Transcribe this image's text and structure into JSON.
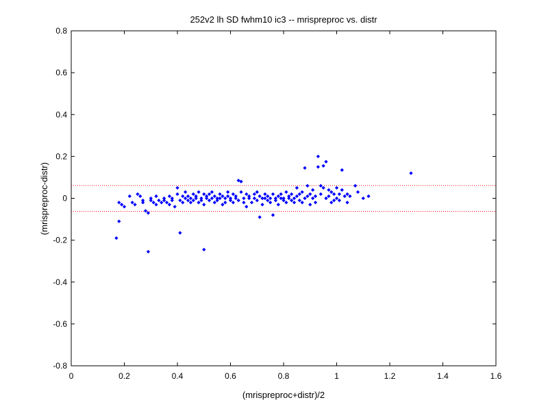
{
  "chart_data": {
    "type": "scatter",
    "title": "252v2 lh SD fwhm10 ic3 -- mrispreproc vs. distr",
    "xlabel": "(mrispreproc+distr)/2",
    "ylabel": "(mrispreproc-distr)",
    "xlim": [
      0,
      1.6
    ],
    "ylim": [
      -0.8,
      0.8
    ],
    "x_ticks": [
      "0",
      "0.2",
      "0.4",
      "0.6",
      "0.8",
      "1",
      "1.2",
      "1.4",
      "1.6"
    ],
    "y_ticks": [
      "-0.8",
      "-0.6",
      "-0.4",
      "-0.2",
      "0",
      "0.2",
      "0.4",
      "0.6",
      "0.8"
    ],
    "grid": false,
    "reference_lines": {
      "values": [
        0.061,
        -0.062
      ],
      "color": "#ff0000",
      "style": "dotted"
    },
    "marker_color": "#0000ff",
    "series": [
      {
        "points": [
          [
            0.17,
            -0.19
          ],
          [
            0.18,
            -0.11
          ],
          [
            0.18,
            -0.02
          ],
          [
            0.19,
            -0.03
          ],
          [
            0.2,
            -0.04
          ],
          [
            0.22,
            0.01
          ],
          [
            0.23,
            -0.02
          ],
          [
            0.24,
            -0.03
          ],
          [
            0.25,
            0.02
          ],
          [
            0.26,
            0.01
          ],
          [
            0.27,
            -0.02
          ],
          [
            0.27,
            -0.01
          ],
          [
            0.28,
            -0.06
          ],
          [
            0.29,
            -0.255
          ],
          [
            0.29,
            -0.07
          ],
          [
            0.3,
            -0.01
          ],
          [
            0.3,
            0.0
          ],
          [
            0.31,
            -0.02
          ],
          [
            0.32,
            -0.03
          ],
          [
            0.32,
            0.01
          ],
          [
            0.33,
            -0.01
          ],
          [
            0.34,
            -0.02
          ],
          [
            0.35,
            0.0
          ],
          [
            0.35,
            -0.01
          ],
          [
            0.36,
            -0.02
          ],
          [
            0.37,
            0.01
          ],
          [
            0.37,
            -0.03
          ],
          [
            0.38,
            -0.01
          ],
          [
            0.38,
            0.0
          ],
          [
            0.39,
            -0.04
          ],
          [
            0.4,
            0.05
          ],
          [
            0.4,
            0.02
          ],
          [
            0.41,
            -0.165
          ],
          [
            0.41,
            -0.01
          ],
          [
            0.42,
            0.01
          ],
          [
            0.42,
            -0.02
          ],
          [
            0.43,
            0.0
          ],
          [
            0.43,
            0.03
          ],
          [
            0.44,
            -0.01
          ],
          [
            0.44,
            0.01
          ],
          [
            0.45,
            0.0
          ],
          [
            0.45,
            -0.02
          ],
          [
            0.46,
            0.02
          ],
          [
            0.46,
            -0.01
          ],
          [
            0.47,
            0.0
          ],
          [
            0.47,
            0.01
          ],
          [
            0.48,
            -0.02
          ],
          [
            0.48,
            0.03
          ],
          [
            0.49,
            0.0
          ],
          [
            0.49,
            -0.01
          ],
          [
            0.5,
            -0.245
          ],
          [
            0.5,
            0.02
          ],
          [
            0.5,
            -0.03
          ],
          [
            0.51,
            0.01
          ],
          [
            0.51,
            0.0
          ],
          [
            0.52,
            -0.01
          ],
          [
            0.52,
            0.02
          ],
          [
            0.53,
            0.0
          ],
          [
            0.53,
            0.03
          ],
          [
            0.54,
            -0.02
          ],
          [
            0.54,
            0.01
          ],
          [
            0.55,
            0.0
          ],
          [
            0.55,
            -0.01
          ],
          [
            0.56,
            0.02
          ],
          [
            0.56,
            0.0
          ],
          [
            0.57,
            -0.03
          ],
          [
            0.57,
            0.01
          ],
          [
            0.58,
            0.0
          ],
          [
            0.58,
            -0.02
          ],
          [
            0.59,
            0.01
          ],
          [
            0.59,
            0.03
          ],
          [
            0.6,
            -0.01
          ],
          [
            0.6,
            0.0
          ],
          [
            0.61,
            0.02
          ],
          [
            0.61,
            -0.02
          ],
          [
            0.62,
            0.01
          ],
          [
            0.62,
            0.0
          ],
          [
            0.63,
            0.085
          ],
          [
            0.63,
            -0.01
          ],
          [
            0.64,
            0.08
          ],
          [
            0.64,
            0.03
          ],
          [
            0.65,
            -0.02
          ],
          [
            0.65,
            0.0
          ],
          [
            0.66,
            0.02
          ],
          [
            0.66,
            -0.04
          ],
          [
            0.67,
            0.01
          ],
          [
            0.67,
            0.0
          ],
          [
            0.68,
            -0.02
          ],
          [
            0.69,
            0.02
          ],
          [
            0.69,
            0.0
          ],
          [
            0.7,
            -0.01
          ],
          [
            0.7,
            0.03
          ],
          [
            0.71,
            -0.09
          ],
          [
            0.71,
            0.01
          ],
          [
            0.72,
            0.0
          ],
          [
            0.72,
            -0.03
          ],
          [
            0.73,
            0.02
          ],
          [
            0.73,
            0.0
          ],
          [
            0.74,
            -0.01
          ],
          [
            0.74,
            0.01
          ],
          [
            0.75,
            -0.02
          ],
          [
            0.75,
            0.0
          ],
          [
            0.76,
            -0.08
          ],
          [
            0.76,
            0.02
          ],
          [
            0.77,
            0.0
          ],
          [
            0.77,
            -0.01
          ],
          [
            0.78,
            0.01
          ],
          [
            0.78,
            -0.03
          ],
          [
            0.79,
            0.0
          ],
          [
            0.79,
            0.02
          ],
          [
            0.8,
            -0.01
          ],
          [
            0.8,
            0.0
          ],
          [
            0.81,
            0.03
          ],
          [
            0.81,
            -0.02
          ],
          [
            0.82,
            0.01
          ],
          [
            0.82,
            0.0
          ],
          [
            0.83,
            -0.01
          ],
          [
            0.83,
            0.02
          ],
          [
            0.84,
            0.0
          ],
          [
            0.84,
            -0.02
          ],
          [
            0.85,
            0.05
          ],
          [
            0.85,
            0.01
          ],
          [
            0.86,
            -0.01
          ],
          [
            0.86,
            0.02
          ],
          [
            0.87,
            0.03
          ],
          [
            0.87,
            -0.02
          ],
          [
            0.88,
            0.145
          ],
          [
            0.88,
            0.0
          ],
          [
            0.89,
            0.06
          ],
          [
            0.89,
            0.01
          ],
          [
            0.9,
            0.02
          ],
          [
            0.9,
            -0.03
          ],
          [
            0.91,
            0.04
          ],
          [
            0.91,
            0.0
          ],
          [
            0.92,
            0.01
          ],
          [
            0.92,
            -0.02
          ],
          [
            0.93,
            0.2
          ],
          [
            0.93,
            0.15
          ],
          [
            0.94,
            0.06
          ],
          [
            0.94,
            0.02
          ],
          [
            0.95,
            0.155
          ],
          [
            0.95,
            0.05
          ],
          [
            0.96,
            0.175
          ],
          [
            0.96,
            0.0
          ],
          [
            0.97,
            0.04
          ],
          [
            0.97,
            0.01
          ],
          [
            0.98,
            -0.02
          ],
          [
            0.98,
            0.03
          ],
          [
            0.99,
            0.02
          ],
          [
            0.99,
            -0.01
          ],
          [
            1.0,
            0.05
          ],
          [
            1.0,
            0.0
          ],
          [
            1.01,
            0.02
          ],
          [
            1.01,
            -0.01
          ],
          [
            1.02,
            0.135
          ],
          [
            1.02,
            0.04
          ],
          [
            1.03,
            0.01
          ],
          [
            1.04,
            0.02
          ],
          [
            1.04,
            -0.02
          ],
          [
            1.05,
            0.01
          ],
          [
            1.07,
            0.06
          ],
          [
            1.08,
            0.03
          ],
          [
            1.1,
            0.0
          ],
          [
            1.12,
            0.01
          ],
          [
            1.28,
            0.12
          ]
        ]
      }
    ]
  }
}
